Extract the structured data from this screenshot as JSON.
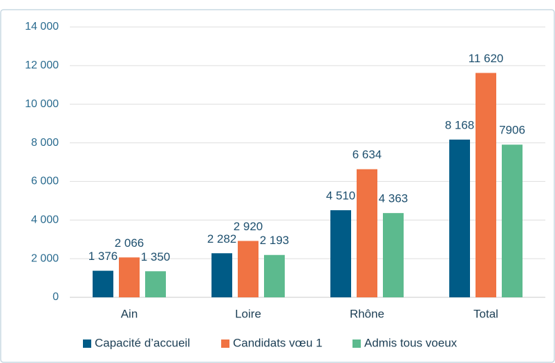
{
  "chart_data": {
    "type": "bar",
    "categories": [
      "Ain",
      "Loire",
      "Rhône",
      "Total"
    ],
    "series": [
      {
        "name": "Capacité d’accueil",
        "color": "#005b86",
        "values": [
          1376,
          2282,
          4510,
          8168
        ],
        "value_labels": [
          "1 376",
          "2 282",
          "4 510",
          "8 168"
        ]
      },
      {
        "name": "Candidats vœu 1",
        "color": "#f07343",
        "values": [
          2066,
          2920,
          6634,
          11620
        ],
        "value_labels": [
          "2 066",
          "2 920",
          "6 634",
          "11 620"
        ]
      },
      {
        "name": "Admis tous voeux",
        "color": "#5cba8e",
        "values": [
          1350,
          2193,
          4363,
          7906
        ],
        "value_labels": [
          "1 350",
          "2 193",
          "4 363",
          "7906"
        ]
      }
    ],
    "ylim": [
      0,
      14000
    ],
    "yticks": [
      0,
      {
        "value": 2000,
        "label": "2 000"
      },
      {
        "value": 4000,
        "label": "4 000"
      },
      {
        "value": 6000,
        "label": "6 000"
      },
      {
        "value": 8000,
        "label": "8 000"
      },
      {
        "value": 10000,
        "label": "10 000"
      },
      {
        "value": 12000,
        "label": "12 000"
      },
      {
        "value": 14000,
        "label": "14 000"
      }
    ],
    "grid": true,
    "legend": "bottom"
  }
}
